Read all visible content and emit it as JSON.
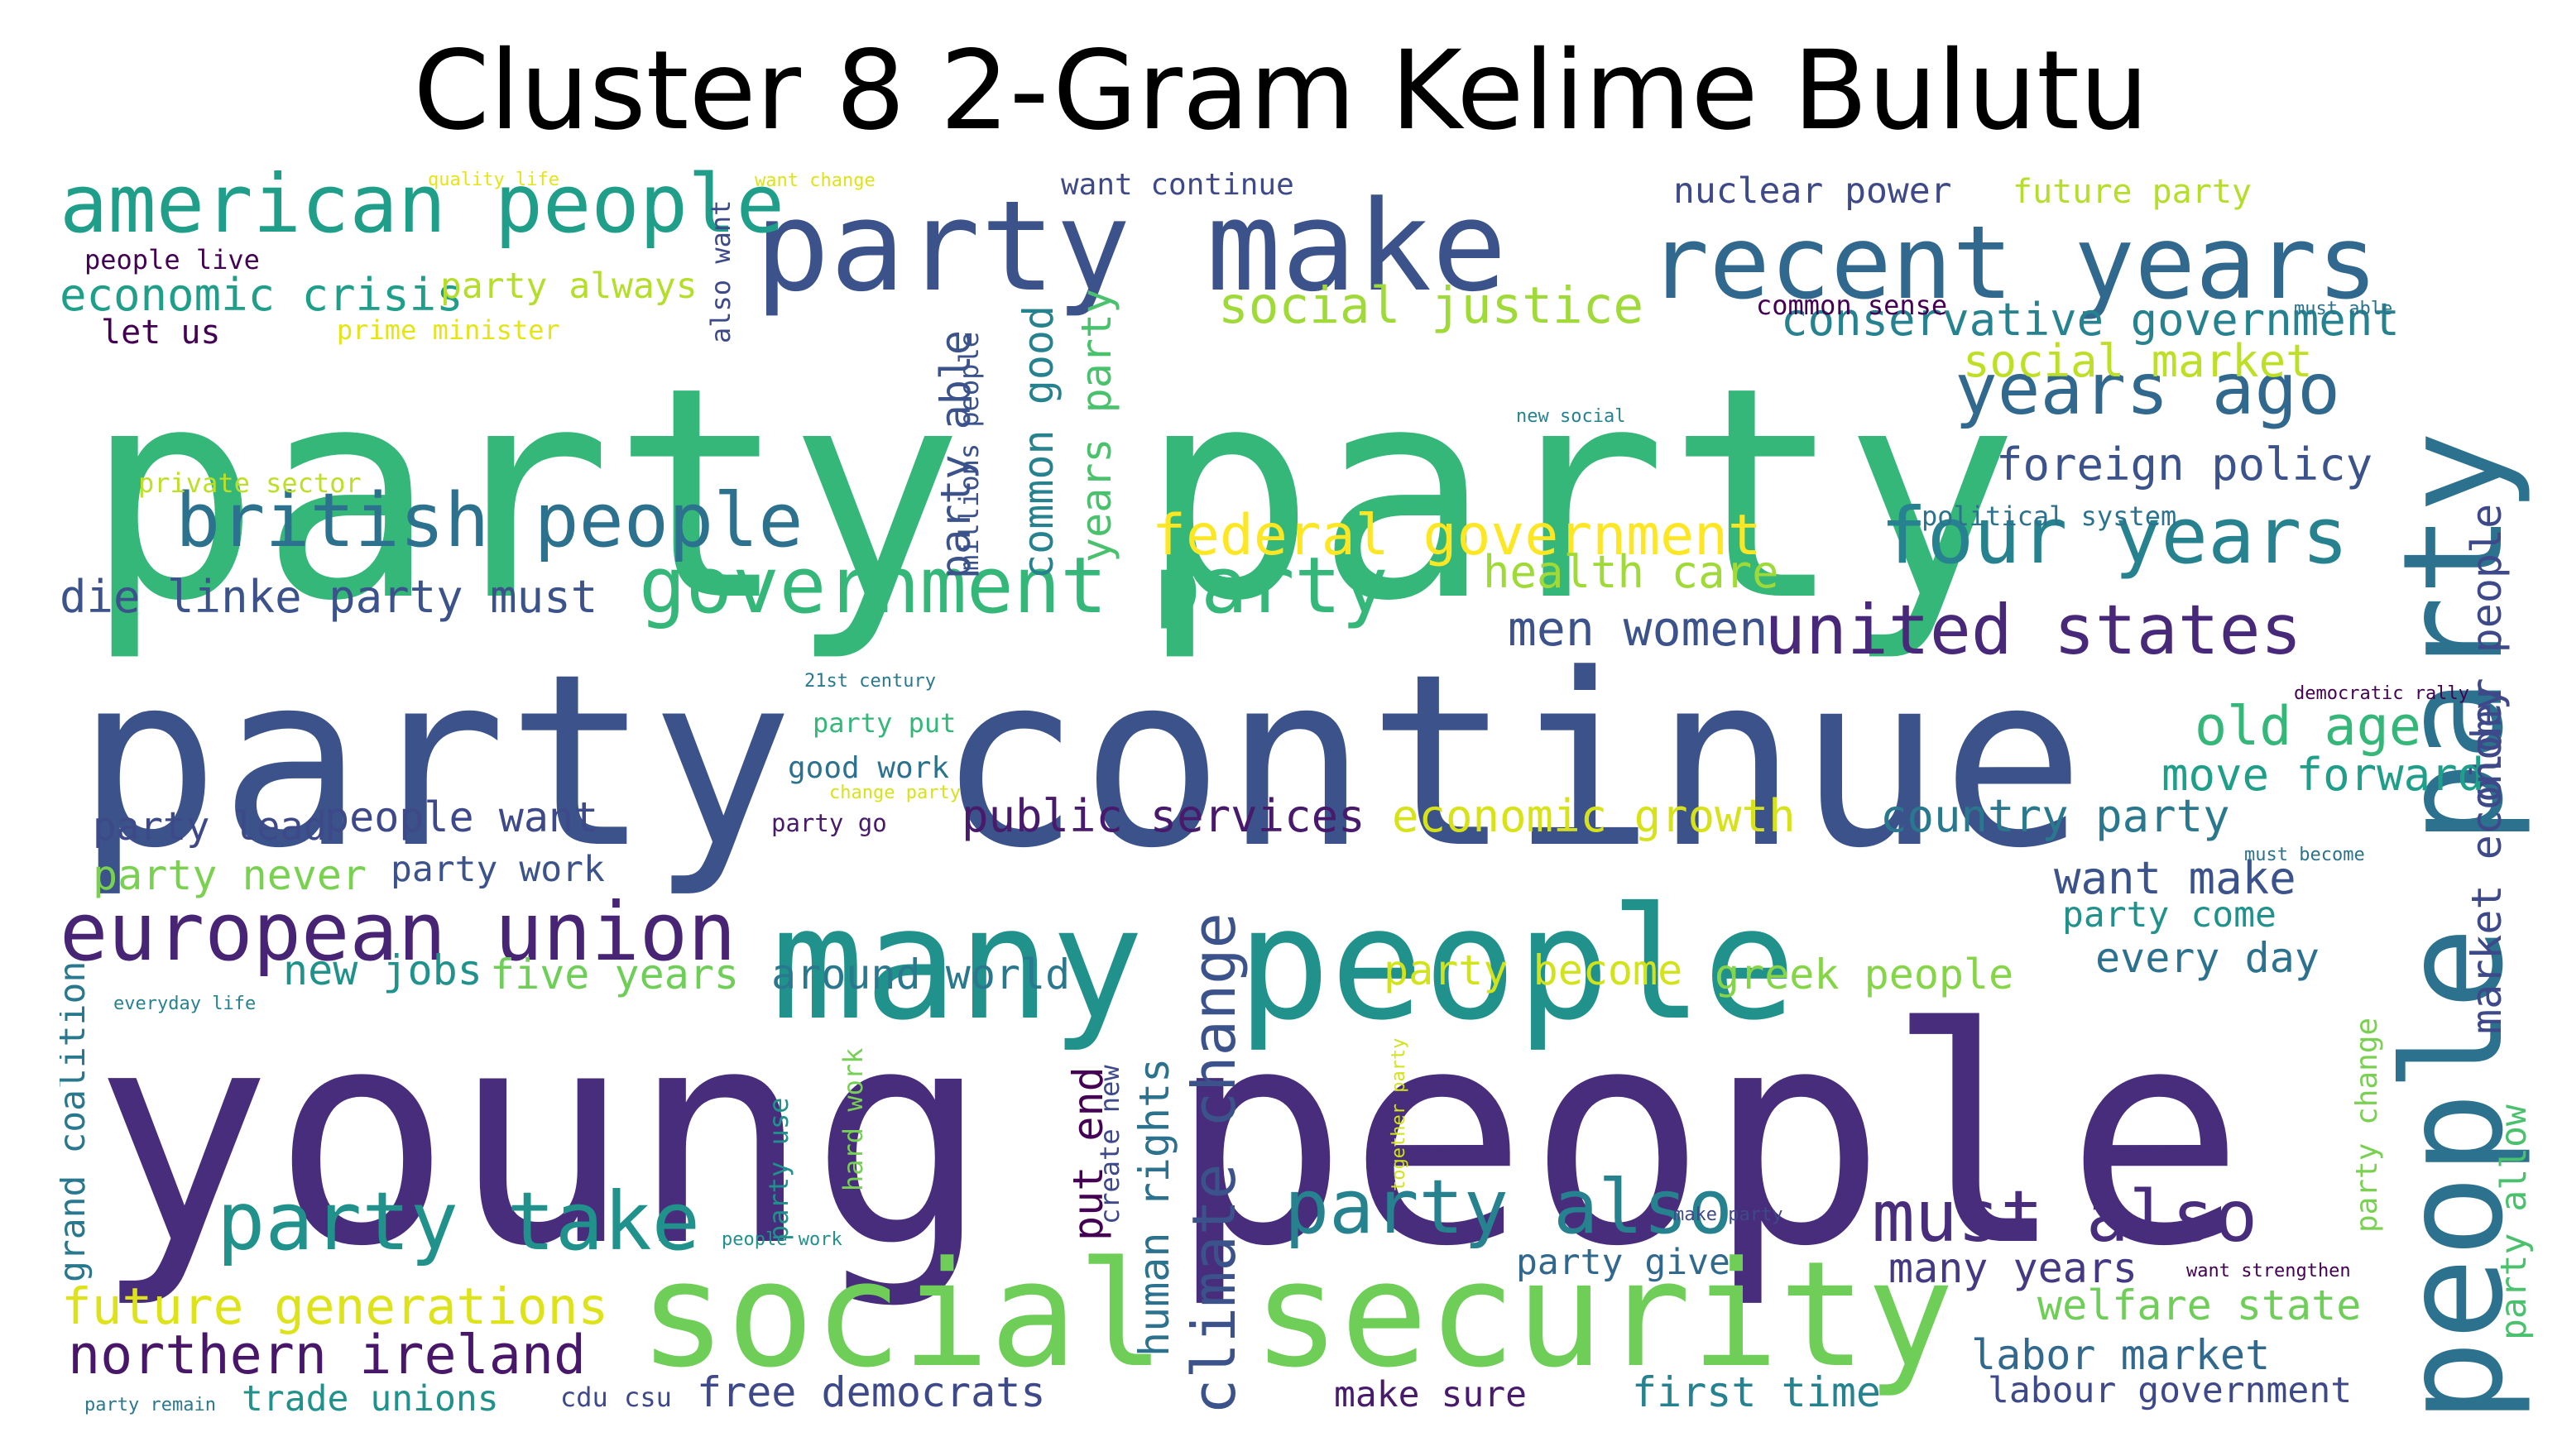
{
  "title": "Cluster 8 2-Gram Kelime Bulutu",
  "words": [
    {
      "text": "young people",
      "size": 100,
      "color": "#472d7b"
    },
    {
      "text": "party party",
      "size": 98,
      "color": "#35b779"
    },
    {
      "text": "party continue",
      "size": 80,
      "color": "#3b528b"
    },
    {
      "text": "many people",
      "size": 52,
      "color": "#21918c"
    },
    {
      "text": "social security",
      "size": 49,
      "color": "#6ece58"
    },
    {
      "text": "people party",
      "size": 46,
      "color": "#2c728e"
    },
    {
      "text": "party make",
      "size": 42,
      "color": "#3b528b"
    },
    {
      "text": "recent years",
      "size": 34,
      "color": "#31688e"
    },
    {
      "text": "american people",
      "size": 27,
      "color": "#1f9e89"
    },
    {
      "text": "european union",
      "size": 27,
      "color": "#482475"
    },
    {
      "text": "government party",
      "size": 26,
      "color": "#35b779"
    },
    {
      "text": "british people",
      "size": 25,
      "color": "#2c728e"
    },
    {
      "text": "party take",
      "size": 27,
      "color": "#21918c"
    },
    {
      "text": "party also",
      "size": 25,
      "color": "#26828e"
    },
    {
      "text": "must also",
      "size": 24,
      "color": "#472d7b"
    },
    {
      "text": "four years",
      "size": 26,
      "color": "#26828e"
    },
    {
      "text": "united states",
      "size": 23,
      "color": "#482878"
    },
    {
      "text": "years ago",
      "size": 24,
      "color": "#31688e"
    },
    {
      "text": "climate change",
      "size": 20,
      "color": "#3b528b"
    },
    {
      "text": "federal government",
      "size": 19,
      "color": "#fde725"
    },
    {
      "text": "future generations",
      "size": 17,
      "color": "#dde318"
    },
    {
      "text": "northern ireland",
      "size": 18,
      "color": "#481769"
    },
    {
      "text": "social justice",
      "size": 17,
      "color": "#a0da39"
    },
    {
      "text": "old age",
      "size": 18,
      "color": "#35b779"
    },
    {
      "text": "economic crisis",
      "size": 15,
      "color": "#1f9e89"
    },
    {
      "text": "die linke party must",
      "size": 15,
      "color": "#3b528b"
    },
    {
      "text": "party able",
      "size": 14,
      "color": "#3b528b"
    },
    {
      "text": "common good",
      "size": 14,
      "color": "#26828e"
    },
    {
      "text": "years party",
      "size": 14,
      "color": "#4ac16d"
    },
    {
      "text": "health care",
      "size": 15,
      "color": "#a0da39"
    },
    {
      "text": "men women",
      "size": 16,
      "color": "#3b528b"
    },
    {
      "text": "conservative government",
      "size": 15,
      "color": "#26828e"
    },
    {
      "text": "social market",
      "size": 15,
      "color": "#bddf26"
    },
    {
      "text": "foreign policy",
      "size": 15,
      "color": "#3b528b"
    },
    {
      "text": "older people",
      "size": 14,
      "color": "#3e4989"
    },
    {
      "text": "move forward",
      "size": 15,
      "color": "#1f9e89"
    },
    {
      "text": "market economy",
      "size": 14,
      "color": "#3e4989"
    },
    {
      "text": "public services",
      "size": 15,
      "color": "#481a6c"
    },
    {
      "text": "economic growth",
      "size": 15,
      "color": "#d8e219"
    },
    {
      "text": "country party",
      "size": 15,
      "color": "#2a788e"
    },
    {
      "text": "want make",
      "size": 15,
      "color": "#3b528b"
    },
    {
      "text": "people want",
      "size": 14,
      "color": "#3e4989"
    },
    {
      "text": "party lead",
      "size": 13,
      "color": "#3e4989"
    },
    {
      "text": "party never",
      "size": 14,
      "color": "#7ad151"
    },
    {
      "text": "party work",
      "size": 12,
      "color": "#3b528b"
    },
    {
      "text": "new jobs",
      "size": 14,
      "color": "#21918c"
    },
    {
      "text": "five years",
      "size": 14,
      "color": "#6ece58"
    },
    {
      "text": "around world",
      "size": 14,
      "color": "#2a788e"
    },
    {
      "text": "party become",
      "size": 14,
      "color": "#d2e21b"
    },
    {
      "text": "greek people",
      "size": 14,
      "color": "#86d549"
    },
    {
      "text": "every day",
      "size": 14,
      "color": "#2c728e"
    },
    {
      "text": "put end",
      "size": 14,
      "color": "#440154"
    },
    {
      "text": "human rights",
      "size": 14,
      "color": "#2c728e"
    },
    {
      "text": "grand coalition",
      "size": 12,
      "color": "#2a788e"
    },
    {
      "text": "welfare state",
      "size": 14,
      "color": "#6ece58"
    },
    {
      "text": "labor market",
      "size": 14,
      "color": "#31688e"
    },
    {
      "text": "labour government",
      "size": 12,
      "color": "#3e4989"
    },
    {
      "text": "first time",
      "size": 14,
      "color": "#26828e"
    },
    {
      "text": "free democrats",
      "size": 14,
      "color": "#3e4989"
    },
    {
      "text": "make sure",
      "size": 12,
      "color": "#481a6c"
    },
    {
      "text": "trade unions",
      "size": 12,
      "color": "#21918c"
    },
    {
      "text": "party give",
      "size": 12,
      "color": "#31688e"
    },
    {
      "text": "many years",
      "size": 14,
      "color": "#443a83"
    },
    {
      "text": "party allow",
      "size": 12,
      "color": "#4ac16d"
    },
    {
      "text": "party change",
      "size": 10,
      "color": "#7ad151"
    },
    {
      "text": "party come",
      "size": 12,
      "color": "#21918c"
    },
    {
      "text": "party always",
      "size": 12,
      "color": "#b5de2b"
    },
    {
      "text": "prime minister",
      "size": 9,
      "color": "#e5e419"
    },
    {
      "text": "let us",
      "size": 11,
      "color": "#440154"
    },
    {
      "text": "people live",
      "size": 9,
      "color": "#440154"
    },
    {
      "text": "nuclear power",
      "size": 12,
      "color": "#3e4989"
    },
    {
      "text": "future party",
      "size": 11,
      "color": "#b5de2b"
    },
    {
      "text": "want continue",
      "size": 10,
      "color": "#3e4989"
    },
    {
      "text": "want change",
      "size": 6,
      "color": "#dde318"
    },
    {
      "text": "also want",
      "size": 9,
      "color": "#3e4989"
    },
    {
      "text": "quality life",
      "size": 6,
      "color": "#e5e419"
    },
    {
      "text": "millions people",
      "size": 9,
      "color": "#3b528b"
    },
    {
      "text": "common sense",
      "size": 9,
      "color": "#440154"
    },
    {
      "text": "must able",
      "size": 6,
      "color": "#2c728e"
    },
    {
      "text": "new social",
      "size": 6,
      "color": "#26828e"
    },
    {
      "text": "political system",
      "size": 9,
      "color": "#2c728e"
    },
    {
      "text": "democratic rally",
      "size": 6,
      "color": "#440154"
    },
    {
      "text": "must become",
      "size": 6,
      "color": "#2c728e"
    },
    {
      "text": "private sector",
      "size": 9,
      "color": "#bddf26"
    },
    {
      "text": "21st century",
      "size": 6,
      "color": "#2a788e"
    },
    {
      "text": "party put",
      "size": 9,
      "color": "#35b779"
    },
    {
      "text": "good work",
      "size": 10,
      "color": "#2c728e"
    },
    {
      "text": "change party",
      "size": 6,
      "color": "#d8e219"
    },
    {
      "text": "party go",
      "size": 8,
      "color": "#481a6c"
    },
    {
      "text": "everyday life",
      "size": 6,
      "color": "#26828e"
    },
    {
      "text": "hard work",
      "size": 9,
      "color": "#75d054"
    },
    {
      "text": "create new",
      "size": 9,
      "color": "#3e4989"
    },
    {
      "text": "party use",
      "size": 9,
      "color": "#21918c"
    },
    {
      "text": "together party",
      "size": 6,
      "color": "#d2e21b"
    },
    {
      "text": "people work",
      "size": 6,
      "color": "#21918c"
    },
    {
      "text": "make party",
      "size": 6,
      "color": "#3e4989"
    },
    {
      "text": "want strengthen",
      "size": 6,
      "color": "#440154"
    },
    {
      "text": "party remain",
      "size": 6,
      "color": "#2a788e"
    },
    {
      "text": "cdu csu",
      "size": 9,
      "color": "#3e4989"
    }
  ]
}
